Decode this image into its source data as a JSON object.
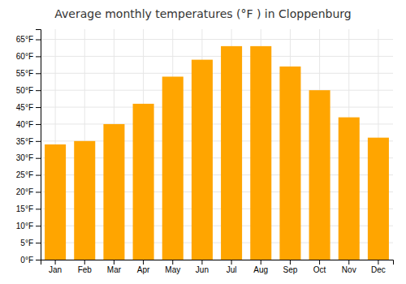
{
  "chart_data": {
    "type": "bar",
    "title": "Average monthly temperatures (°F ) in Cloppenburg",
    "categories": [
      "Jan",
      "Feb",
      "Mar",
      "Apr",
      "May",
      "Jun",
      "Jul",
      "Aug",
      "Sep",
      "Oct",
      "Nov",
      "Dec"
    ],
    "values": [
      34,
      35,
      40,
      46,
      54,
      59,
      63,
      63,
      57,
      50,
      42,
      36
    ],
    "color": "#FFA500",
    "ylim": [
      0,
      68
    ],
    "yticks": [
      {
        "value": 0,
        "label": "0°F"
      },
      {
        "value": 5,
        "label": "5°F"
      },
      {
        "value": 10,
        "label": "10°F"
      },
      {
        "value": 15,
        "label": "15°F"
      },
      {
        "value": 20,
        "label": "20°F"
      },
      {
        "value": 25,
        "label": "25°F"
      },
      {
        "value": 30,
        "label": "30°F"
      },
      {
        "value": 35,
        "label": "35°F"
      },
      {
        "value": 40,
        "label": "40°F"
      },
      {
        "value": 45,
        "label": "45°F"
      },
      {
        "value": 50,
        "label": "50°F"
      },
      {
        "value": 55,
        "label": "55°F"
      },
      {
        "value": 60,
        "label": "60°F"
      },
      {
        "value": 65,
        "label": "65°F"
      }
    ],
    "grid": true
  }
}
